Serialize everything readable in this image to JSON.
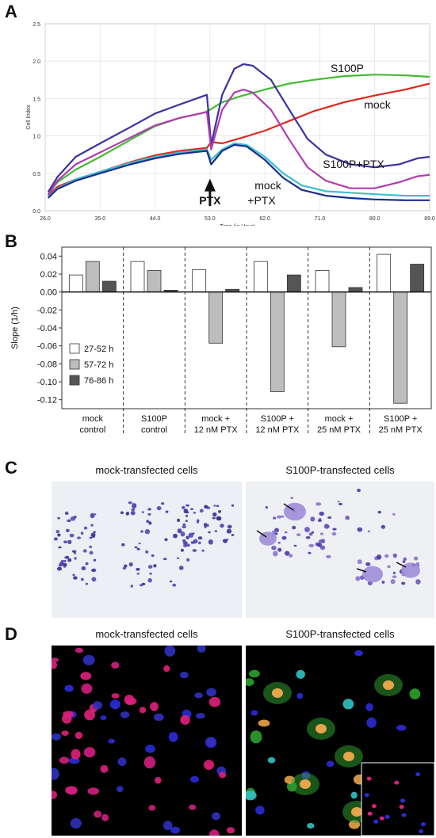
{
  "panels": {
    "a": {
      "letter": "A"
    },
    "b": {
      "letter": "B"
    },
    "c": {
      "letter": "C"
    },
    "d": {
      "letter": "D"
    }
  },
  "chart_data": [
    {
      "type": "line",
      "panel": "A",
      "ylabel": "Cell Index",
      "xlabel": "Time (in Hour)",
      "xlim": [
        26,
        89
      ],
      "ylim": [
        0,
        2.5
      ],
      "xticks": [
        "26.0",
        "35.0",
        "44.0",
        "53.0",
        "62.0",
        "71.0",
        "80.0",
        "89.0"
      ],
      "yticks": [
        "0.0",
        "0.5",
        "1.0",
        "1.5",
        "2.0",
        "2.5"
      ],
      "annotation": {
        "label": "PTX",
        "x": 53.0
      },
      "series": [
        {
          "name": "S100P",
          "color": "#44bb33",
          "points": [
            [
              26.5,
              0.22
            ],
            [
              28,
              0.38
            ],
            [
              31,
              0.55
            ],
            [
              35,
              0.72
            ],
            [
              40,
              0.95
            ],
            [
              44,
              1.13
            ],
            [
              48,
              1.24
            ],
            [
              52,
              1.31
            ],
            [
              53,
              1.35
            ],
            [
              55,
              1.45
            ],
            [
              58,
              1.53
            ],
            [
              62,
              1.62
            ],
            [
              66,
              1.7
            ],
            [
              70,
              1.75
            ],
            [
              75,
              1.8
            ],
            [
              80,
              1.82
            ],
            [
              85,
              1.81
            ],
            [
              89,
              1.79
            ]
          ]
        },
        {
          "name": "mock",
          "color": "#e0281e",
          "points": [
            [
              26.5,
              0.2
            ],
            [
              28,
              0.32
            ],
            [
              31,
              0.42
            ],
            [
              35,
              0.52
            ],
            [
              40,
              0.65
            ],
            [
              44,
              0.74
            ],
            [
              48,
              0.8
            ],
            [
              52.5,
              0.84
            ],
            [
              53.2,
              0.92
            ],
            [
              55,
              0.9
            ],
            [
              58,
              0.97
            ],
            [
              62,
              1.07
            ],
            [
              66,
              1.2
            ],
            [
              70,
              1.33
            ],
            [
              75,
              1.45
            ],
            [
              80,
              1.54
            ],
            [
              85,
              1.62
            ],
            [
              89,
              1.7
            ]
          ]
        },
        {
          "name": "S100P+PTX",
          "color": "#3b32a0",
          "points": [
            [
              26.5,
              0.25
            ],
            [
              28,
              0.45
            ],
            [
              31,
              0.72
            ],
            [
              35,
              0.9
            ],
            [
              40,
              1.12
            ],
            [
              44,
              1.3
            ],
            [
              48,
              1.42
            ],
            [
              52.5,
              1.55
            ],
            [
              53.2,
              0.88
            ],
            [
              55,
              1.55
            ],
            [
              57,
              1.9
            ],
            [
              58.5,
              1.96
            ],
            [
              60,
              1.94
            ],
            [
              63,
              1.75
            ],
            [
              66,
              1.35
            ],
            [
              69,
              0.96
            ],
            [
              72,
              0.75
            ],
            [
              76,
              0.62
            ],
            [
              80,
              0.58
            ],
            [
              84,
              0.62
            ],
            [
              87,
              0.7
            ],
            [
              89,
              0.72
            ]
          ]
        },
        {
          "name": "",
          "color": "#b03cb0",
          "points": [
            [
              26.5,
              0.21
            ],
            [
              28,
              0.4
            ],
            [
              31,
              0.62
            ],
            [
              35,
              0.78
            ],
            [
              40,
              0.98
            ],
            [
              44,
              1.14
            ],
            [
              48,
              1.24
            ],
            [
              52.5,
              1.32
            ],
            [
              53.2,
              0.82
            ],
            [
              55,
              1.35
            ],
            [
              57,
              1.58
            ],
            [
              58.5,
              1.62
            ],
            [
              60,
              1.58
            ],
            [
              63,
              1.35
            ],
            [
              66,
              0.95
            ],
            [
              69,
              0.58
            ],
            [
              72,
              0.4
            ],
            [
              76,
              0.3
            ],
            [
              80,
              0.3
            ],
            [
              84,
              0.38
            ],
            [
              87,
              0.46
            ],
            [
              89,
              0.48
            ]
          ]
        },
        {
          "name": "",
          "color": "#3cc0d0",
          "points": [
            [
              26.5,
              0.18
            ],
            [
              28,
              0.3
            ],
            [
              31,
              0.42
            ],
            [
              35,
              0.52
            ],
            [
              40,
              0.64
            ],
            [
              44,
              0.72
            ],
            [
              48,
              0.78
            ],
            [
              52.5,
              0.82
            ],
            [
              53.2,
              0.68
            ],
            [
              55,
              0.82
            ],
            [
              57,
              0.9
            ],
            [
              59,
              0.88
            ],
            [
              62,
              0.72
            ],
            [
              65,
              0.5
            ],
            [
              68,
              0.34
            ],
            [
              72,
              0.26
            ],
            [
              76,
              0.24
            ],
            [
              80,
              0.22
            ],
            [
              85,
              0.2
            ],
            [
              89,
              0.2
            ]
          ]
        },
        {
          "name": "mock +PTX",
          "color": "#1c2c8c",
          "points": [
            [
              26.5,
              0.17
            ],
            [
              28,
              0.29
            ],
            [
              31,
              0.4
            ],
            [
              35,
              0.5
            ],
            [
              40,
              0.62
            ],
            [
              44,
              0.7
            ],
            [
              48,
              0.76
            ],
            [
              52.5,
              0.8
            ],
            [
              53.2,
              0.62
            ],
            [
              55,
              0.8
            ],
            [
              57,
              0.88
            ],
            [
              59,
              0.86
            ],
            [
              62,
              0.68
            ],
            [
              65,
              0.44
            ],
            [
              68,
              0.28
            ],
            [
              72,
              0.2
            ],
            [
              76,
              0.17
            ],
            [
              80,
              0.15
            ],
            [
              85,
              0.14
            ],
            [
              89,
              0.14
            ]
          ]
        }
      ],
      "labels": [
        {
          "text": "S100P",
          "for": "S100P"
        },
        {
          "text": "mock",
          "for": "mock"
        },
        {
          "text": "S100P+PTX",
          "for": "S100P+PTX"
        },
        {
          "text": "mock",
          "for": "mock+PTX-line1"
        },
        {
          "text": "+PTX",
          "for": "mock+PTX-line2"
        }
      ]
    },
    {
      "type": "bar",
      "panel": "B",
      "ylabel": "Slope (1/h)",
      "ylim": [
        -0.13,
        0.05
      ],
      "yticks": [
        "0.04",
        "0.02",
        "0.00",
        "-0.02",
        "-0.04",
        "-0.06",
        "-0.08",
        "-0.10",
        "-0.12"
      ],
      "categories": [
        [
          "mock",
          "control"
        ],
        [
          "S100P",
          "control"
        ],
        [
          "mock +",
          "12 nM PTX"
        ],
        [
          "S100P +",
          "12 nM PTX"
        ],
        [
          "mock +",
          "25 nM PTX"
        ],
        [
          "S100P +",
          "25 nM PTX"
        ]
      ],
      "series": [
        {
          "name": "27-52 h",
          "color": "#ffffff",
          "values": [
            0.019,
            0.034,
            0.025,
            0.034,
            0.024,
            0.042
          ]
        },
        {
          "name": "57-72 h",
          "color": "#bdbdbd",
          "values": [
            0.034,
            0.024,
            -0.057,
            -0.111,
            -0.061,
            -0.124
          ]
        },
        {
          "name": "76-86 h",
          "color": "#555555",
          "values": [
            0.012,
            0.002,
            0.003,
            0.019,
            0.005,
            0.031
          ]
        }
      ],
      "legend_position": "left"
    }
  ],
  "panel_c": {
    "left_title": "mock-transfected cells",
    "right_title": "S100P-transfected cells"
  },
  "panel_d": {
    "left_title": "mock-transfected cells",
    "right_title": "S100P-transfected cells"
  }
}
